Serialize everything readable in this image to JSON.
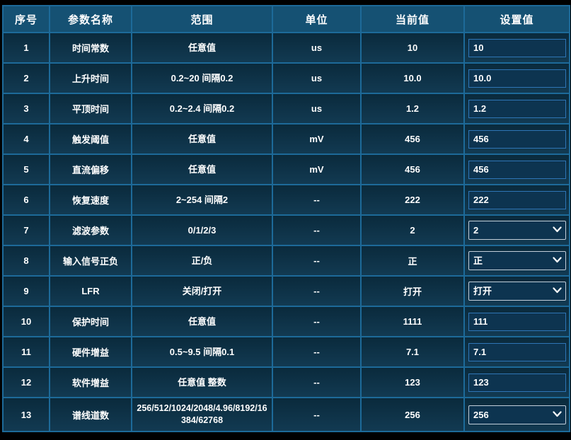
{
  "colors": {
    "background": "#000000",
    "header_bg": "#155173",
    "row_bg_top": "#0a2a3c",
    "row_bg_bottom": "#123a52",
    "grid_border": "#1d6a99",
    "input_bg": "#0d3450",
    "input_border": "#2e75b6",
    "select_border": "#c2ceda",
    "text": "#ffffff"
  },
  "table": {
    "headers": [
      "序号",
      "参数名称",
      "范围",
      "单位",
      "当前值",
      "设置值"
    ],
    "rows": [
      {
        "no": "1",
        "name": "时间常数",
        "range": "任意值",
        "unit": "us",
        "current": "10",
        "control": "input",
        "set_value": "10"
      },
      {
        "no": "2",
        "name": "上升时间",
        "range": "0.2~20 间隔0.2",
        "unit": "us",
        "current": "10.0",
        "control": "input",
        "set_value": "10.0"
      },
      {
        "no": "3",
        "name": "平顶时间",
        "range": "0.2~2.4 间隔0.2",
        "unit": "us",
        "current": "1.2",
        "control": "input",
        "set_value": "1.2"
      },
      {
        "no": "4",
        "name": "触发阈值",
        "range": "任意值",
        "unit": "mV",
        "current": "456",
        "control": "input",
        "set_value": "456"
      },
      {
        "no": "5",
        "name": "直流偏移",
        "range": "任意值",
        "unit": "mV",
        "current": "456",
        "control": "input",
        "set_value": "456"
      },
      {
        "no": "6",
        "name": "恢复速度",
        "range": "2~254 间隔2",
        "unit": "--",
        "current": "222",
        "control": "input",
        "set_value": "222"
      },
      {
        "no": "7",
        "name": "滤波参数",
        "range": "0/1/2/3",
        "unit": "--",
        "current": "2",
        "control": "select",
        "set_value": "2"
      },
      {
        "no": "8",
        "name": "输入信号正负",
        "range": "正/负",
        "unit": "--",
        "current": "正",
        "control": "select",
        "set_value": "正"
      },
      {
        "no": "9",
        "name": "LFR",
        "range": "关闭/打开",
        "unit": "--",
        "current": "打开",
        "control": "select",
        "set_value": "打开"
      },
      {
        "no": "10",
        "name": "保护时间",
        "range": "任意值",
        "unit": "--",
        "current": "1111",
        "control": "input",
        "set_value": "111"
      },
      {
        "no": "11",
        "name": "硬件增益",
        "range": "0.5~9.5 间隔0.1",
        "unit": "--",
        "current": "7.1",
        "control": "input",
        "set_value": "7.1"
      },
      {
        "no": "12",
        "name": "软件增益",
        "range": "任意值 整数",
        "unit": "--",
        "current": "123",
        "control": "input",
        "set_value": "123"
      },
      {
        "no": "13",
        "name": "谱线道数",
        "range": "256/512/1024/2048/4.96/8192/16384/62768",
        "unit": "--",
        "current": "256",
        "control": "select",
        "set_value": "256"
      }
    ]
  }
}
